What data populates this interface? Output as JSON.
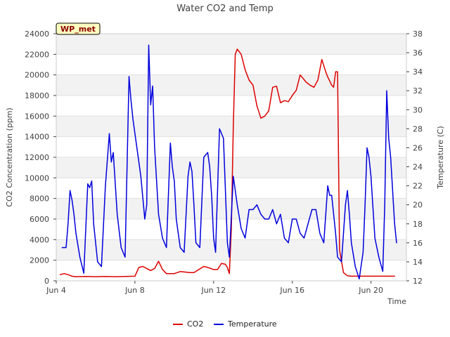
{
  "chart_data": {
    "type": "line",
    "title": "Water CO2 and Temp",
    "station_label": "WP_met",
    "xlabel": "Time",
    "ylabel_left": "CO2 Concentration (ppm)",
    "ylabel_right": "Temperature (C)",
    "x_ticks": [
      {
        "label": "Jun 4",
        "day": 4
      },
      {
        "label": "Jun 8",
        "day": 8
      },
      {
        "label": "Jun 12",
        "day": 12
      },
      {
        "label": "Jun 16",
        "day": 16
      },
      {
        "label": "Jun 20",
        "day": 20
      }
    ],
    "xlim": [
      4,
      21.8
    ],
    "ylim_left": [
      0,
      24000
    ],
    "ylim_right": [
      12,
      38
    ],
    "y_ticks_left": [
      0,
      2000,
      4000,
      6000,
      8000,
      10000,
      12000,
      14000,
      16000,
      18000,
      20000,
      22000,
      24000
    ],
    "y_ticks_right": [
      12,
      14,
      16,
      18,
      20,
      22,
      24,
      26,
      28,
      30,
      32,
      34,
      36,
      38
    ],
    "grid": true,
    "legend_position": "bottom-center",
    "colors": {
      "CO2": "#dd0000",
      "Temperature": "#0000dd",
      "band": "#f2f2f2",
      "station_bg": "#ffffc0"
    },
    "series": [
      {
        "name": "CO2",
        "axis": "left",
        "x": [
          4.2,
          4.4,
          4.6,
          4.8,
          5.0,
          5.5,
          6.0,
          6.5,
          7.0,
          7.5,
          8.0,
          8.2,
          8.4,
          8.7,
          8.8,
          9.0,
          9.2,
          9.4,
          9.6,
          10.0,
          10.3,
          10.8,
          11.0,
          11.5,
          11.7,
          12.0,
          12.2,
          12.4,
          12.6,
          12.7,
          12.8,
          12.9,
          13.0,
          13.1,
          13.2,
          13.4,
          13.6,
          13.8,
          14.0,
          14.2,
          14.4,
          14.6,
          14.8,
          15.0,
          15.2,
          15.4,
          15.6,
          15.8,
          16.0,
          16.2,
          16.4,
          16.7,
          16.9,
          17.1,
          17.3,
          17.5,
          17.7,
          17.8,
          18.0,
          18.1,
          18.2,
          18.3,
          18.4,
          18.6,
          18.8,
          19.0,
          19.5,
          20.0,
          20.5,
          21.0,
          21.2
        ],
        "values": [
          600,
          700,
          600,
          450,
          400,
          420,
          400,
          420,
          400,
          420,
          450,
          1300,
          1400,
          1100,
          1000,
          1200,
          1900,
          1100,
          700,
          700,
          900,
          800,
          800,
          1400,
          1300,
          1100,
          1100,
          1700,
          1600,
          1300,
          700,
          5000,
          15000,
          22000,
          22500,
          22000,
          20500,
          19500,
          19000,
          17000,
          15800,
          16000,
          16500,
          18800,
          18900,
          17300,
          17500,
          17400,
          18000,
          18500,
          20000,
          19300,
          19000,
          18800,
          19500,
          21500,
          20300,
          19800,
          19000,
          18800,
          20300,
          20300,
          3000,
          800,
          500,
          450,
          450,
          450,
          450,
          450,
          450
        ]
      },
      {
        "name": "Temperature",
        "axis": "right",
        "x": [
          4.3,
          4.5,
          4.6,
          4.7,
          4.8,
          4.9,
          5.0,
          5.2,
          5.4,
          5.6,
          5.7,
          5.8,
          5.9,
          6.1,
          6.3,
          6.5,
          6.7,
          6.8,
          6.9,
          7.1,
          7.3,
          7.5,
          7.7,
          7.8,
          7.9,
          8.1,
          8.3,
          8.5,
          8.6,
          8.7,
          8.8,
          8.9,
          9.0,
          9.2,
          9.4,
          9.6,
          9.8,
          9.9,
          10.0,
          10.1,
          10.3,
          10.5,
          10.7,
          10.8,
          10.9,
          11.0,
          11.1,
          11.3,
          11.5,
          11.7,
          11.8,
          11.9,
          12.0,
          12.1,
          12.3,
          12.5,
          12.7,
          12.8,
          13.0,
          13.2,
          13.4,
          13.6,
          13.8,
          14.0,
          14.2,
          14.4,
          14.6,
          14.8,
          15.0,
          15.2,
          15.4,
          15.6,
          15.8,
          16.0,
          16.2,
          16.4,
          16.6,
          16.8,
          17.0,
          17.2,
          17.4,
          17.6,
          17.8,
          17.9,
          18.0,
          18.1,
          18.2,
          18.3,
          18.5,
          18.7,
          18.8,
          18.9,
          19.0,
          19.2,
          19.4,
          19.6,
          19.7,
          19.8,
          19.9,
          20.0,
          20.2,
          20.4,
          20.6,
          20.7,
          20.8,
          20.9,
          21.0,
          21.2,
          21.3
        ],
        "values": [
          15.5,
          15.5,
          18.0,
          21.5,
          20.5,
          19.0,
          17.0,
          14.5,
          12.8,
          22.2,
          21.8,
          22.5,
          18.0,
          14.0,
          13.5,
          22.0,
          27.5,
          24.5,
          25.5,
          19.0,
          15.5,
          14.5,
          33.5,
          31.0,
          29.0,
          26.0,
          23.0,
          18.5,
          20.0,
          36.8,
          30.5,
          32.5,
          26.0,
          19.0,
          16.5,
          15.5,
          26.5,
          24.0,
          22.5,
          18.5,
          15.5,
          15.0,
          23.0,
          24.5,
          23.5,
          20.0,
          16.0,
          15.5,
          25.0,
          25.5,
          24.0,
          21.0,
          16.5,
          15.0,
          28.0,
          27.0,
          16.0,
          14.5,
          23.0,
          20.0,
          17.5,
          16.5,
          19.5,
          19.5,
          20.0,
          19.0,
          18.5,
          18.5,
          19.5,
          18.0,
          19.0,
          16.5,
          16.0,
          18.5,
          18.5,
          17.0,
          16.5,
          18.0,
          19.5,
          19.5,
          17.0,
          16.0,
          22.0,
          21.0,
          21.0,
          19.0,
          17.0,
          14.5,
          14.0,
          20.0,
          21.5,
          19.0,
          16.0,
          13.5,
          12.2,
          15.0,
          20.0,
          26.0,
          25.0,
          23.0,
          16.5,
          14.5,
          13.0,
          20.0,
          32.0,
          27.0,
          25.0,
          18.0,
          16.0
        ]
      }
    ]
  }
}
